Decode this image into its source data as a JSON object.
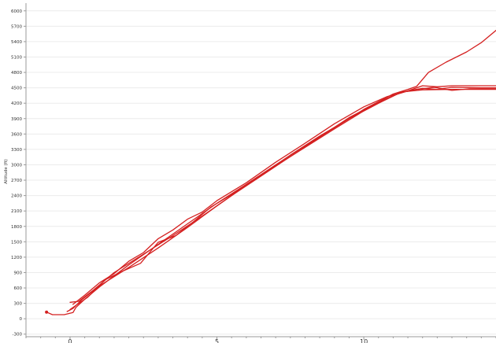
{
  "chart_data": {
    "type": "line",
    "title": "",
    "xlabel": "",
    "ylabel": "Altitude (ft)",
    "xlim": [
      -1.5,
      14.5
    ],
    "ylim": [
      -350,
      6150
    ],
    "grid": true,
    "legend": "none",
    "line_color": "#d42020",
    "y_ticks": [
      -300,
      0,
      300,
      600,
      900,
      1200,
      1500,
      1800,
      2100,
      2400,
      2700,
      3000,
      3300,
      3600,
      3900,
      4200,
      4500,
      4800,
      5100,
      5400,
      5700,
      6000
    ],
    "x_ticks": [
      0,
      5,
      10
    ],
    "series": [
      {
        "x": [
          -0.8,
          -0.6,
          -0.2,
          0.1,
          0.2,
          0.5,
          1.0,
          2.0,
          3.0,
          4.0,
          5.0,
          6.0,
          7.0,
          8.0,
          9.0,
          10.0,
          11.0,
          11.5,
          11.8,
          12.2,
          12.8,
          13.5,
          14.0,
          14.5
        ],
        "y": [
          130,
          80,
          80,
          120,
          220,
          380,
          620,
          1050,
          1450,
          1850,
          2250,
          2620,
          3000,
          3370,
          3720,
          4080,
          4380,
          4470,
          4530,
          4800,
          5000,
          5200,
          5380,
          5620
        ]
      },
      {
        "x": [
          -0.1,
          0.1,
          0.4,
          1.0,
          2.0,
          3.0,
          4.0,
          5.0,
          6.0,
          7.0,
          8.0,
          9.0,
          10.0,
          11.0,
          11.5,
          12.0,
          12.5,
          13.0,
          14.0,
          14.5
        ],
        "y": [
          140,
          200,
          370,
          640,
          1000,
          1380,
          1780,
          2200,
          2600,
          2980,
          3340,
          3700,
          4050,
          4350,
          4440,
          4490,
          4470,
          4510,
          4500,
          4500
        ]
      },
      {
        "x": [
          0.0,
          0.3,
          0.8,
          1.5,
          2.5,
          3.5,
          4.5,
          5.5,
          6.5,
          7.5,
          8.5,
          9.5,
          10.5,
          11.2,
          11.8,
          12.4,
          13.0,
          13.6,
          14.5
        ],
        "y": [
          320,
          340,
          560,
          900,
          1260,
          1620,
          2000,
          2400,
          2780,
          3160,
          3540,
          3920,
          4220,
          4400,
          4470,
          4510,
          4450,
          4480,
          4480
        ]
      },
      {
        "x": [
          0.1,
          0.5,
          1.0,
          1.5,
          2.0,
          2.5,
          3.0,
          3.5,
          4.0,
          4.5,
          5.0,
          6.0,
          7.0,
          8.0,
          9.0,
          10.0,
          10.8,
          11.5,
          12.0,
          12.5,
          13.0,
          14.5
        ],
        "y": [
          280,
          460,
          700,
          880,
          1120,
          1290,
          1560,
          1730,
          1940,
          2080,
          2300,
          2650,
          3050,
          3420,
          3800,
          4130,
          4330,
          4440,
          4540,
          4520,
          4540,
          4540
        ]
      },
      {
        "x": [
          0.0,
          0.6,
          1.2,
          1.8,
          2.4,
          3.0,
          3.6,
          4.2,
          4.8,
          5.5,
          6.5,
          7.5,
          8.5,
          9.5,
          10.5,
          11.3,
          12.0,
          13.0,
          14.5
        ],
        "y": [
          180,
          420,
          760,
          930,
          1080,
          1490,
          1620,
          1890,
          2180,
          2420,
          2800,
          3190,
          3560,
          3900,
          4200,
          4420,
          4460,
          4470,
          4470
        ]
      }
    ]
  }
}
